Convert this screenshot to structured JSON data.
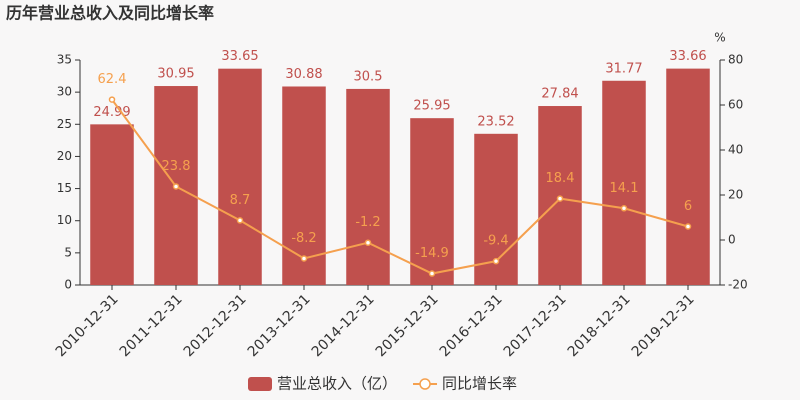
{
  "chart_data": {
    "type": "bar",
    "title": "历年营业总收入及同比增长率",
    "categories": [
      "2010-12-31",
      "2011-12-31",
      "2012-12-31",
      "2013-12-31",
      "2014-12-31",
      "2015-12-31",
      "2016-12-31",
      "2017-12-31",
      "2018-12-31",
      "2019-12-31"
    ],
    "series": [
      {
        "name": "营业总收入（亿）",
        "type": "bar",
        "color": "#c0504d",
        "values": [
          24.99,
          30.95,
          33.65,
          30.88,
          30.5,
          25.95,
          23.52,
          27.84,
          31.77,
          33.66
        ]
      },
      {
        "name": "同比增长率",
        "type": "line",
        "axis": "y2",
        "color": "#f5a04e",
        "values": [
          62.4,
          23.8,
          8.7,
          -8.2,
          -1.2,
          -14.9,
          -9.4,
          18.4,
          14.1,
          6
        ]
      }
    ],
    "ylim": [
      0,
      35
    ],
    "yticks": [
      0,
      5,
      10,
      15,
      20,
      25,
      30,
      35
    ],
    "y2lim": [
      -20,
      80
    ],
    "y2ticks": [
      -20,
      0,
      20,
      40,
      60,
      80
    ],
    "y2label": "%",
    "legend": "bottom"
  }
}
